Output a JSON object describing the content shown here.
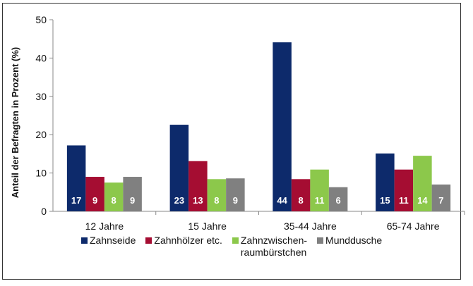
{
  "chart_data": {
    "type": "bar",
    "title": "",
    "xlabel": "",
    "ylabel": "Anteil der Befragten in Prozent (%)",
    "ylim": [
      0,
      50
    ],
    "yticks": [
      0,
      10,
      20,
      30,
      40,
      50
    ],
    "grid": false,
    "legend_position": "bottom",
    "categories": [
      "12 Jahre",
      "15 Jahre",
      "35-44 Jahre",
      "65-74 Jahre"
    ],
    "series": [
      {
        "name": "Zahnseide",
        "color": "#0d2a6b",
        "values": [
          17.2,
          22.6,
          44.1,
          15.1
        ],
        "labels": [
          "17",
          "23",
          "44",
          "15"
        ]
      },
      {
        "name": "Zahnhölzer etc.",
        "color": "#a50d32",
        "values": [
          9.0,
          13.1,
          8.4,
          10.9
        ],
        "labels": [
          "9",
          "13",
          "8",
          "11"
        ]
      },
      {
        "name": "Zahnzwischen-\nraumbürstchen",
        "color": "#8cc84b",
        "values": [
          7.5,
          8.4,
          10.9,
          14.5
        ],
        "labels": [
          "8",
          "8",
          "11",
          "14"
        ]
      },
      {
        "name": "Munddusche",
        "color": "#808080",
        "values": [
          9.0,
          8.6,
          6.3,
          7.0
        ],
        "labels": [
          "9",
          "9",
          "6",
          "7"
        ]
      }
    ]
  }
}
